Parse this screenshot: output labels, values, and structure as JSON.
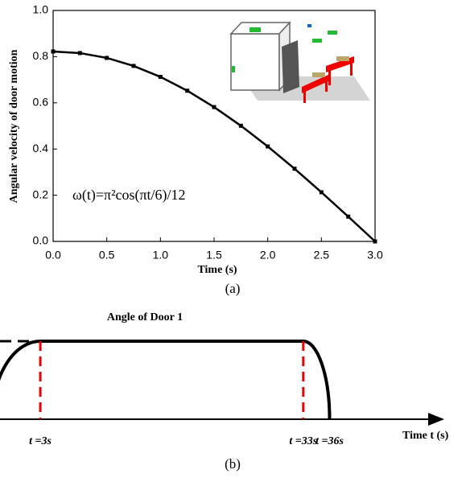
{
  "chart_data": [
    {
      "type": "line",
      "x_label": "Time (s)",
      "y_label": "Angular velocity of door motion",
      "annotation": "ω(t)=π²cos(πt/6)/12",
      "panel_label": "(a)",
      "x": [
        0,
        0.25,
        0.5,
        0.75,
        1.0,
        1.25,
        1.5,
        1.75,
        2.0,
        2.25,
        2.5,
        2.75,
        3.0
      ],
      "values": [
        0.8225,
        0.8155,
        0.7945,
        0.7599,
        0.7123,
        0.6525,
        0.5816,
        0.5007,
        0.4112,
        0.3147,
        0.2129,
        0.1074,
        0
      ],
      "color": "#000000",
      "xlim": [
        0,
        3
      ],
      "ylim": [
        0,
        1
      ],
      "xticks": [
        {
          "value": 0,
          "label": "0.0"
        },
        0.5,
        {
          "value": 1,
          "label": "1.0"
        },
        1.5,
        {
          "value": 2,
          "label": "2.0"
        },
        2.5,
        {
          "value": 3,
          "label": "3.0"
        }
      ],
      "yticks": [
        {
          "value": 0,
          "label": "0.0"
        },
        0.2,
        0.4,
        0.6,
        0.8,
        {
          "value": 1,
          "label": "1.0"
        }
      ]
    },
    {
      "type": "schematic",
      "title": "Angle of Door 1",
      "x_label": "Time t (s)",
      "panel_label": "(b)",
      "xlim": [
        -1.6,
        48.9
      ],
      "xticks": [
        {
          "value": 3,
          "label": "t =3s"
        },
        {
          "value": 33,
          "label": "t =33s"
        },
        {
          "value": 36,
          "label": "t =36s"
        }
      ]
    }
  ]
}
